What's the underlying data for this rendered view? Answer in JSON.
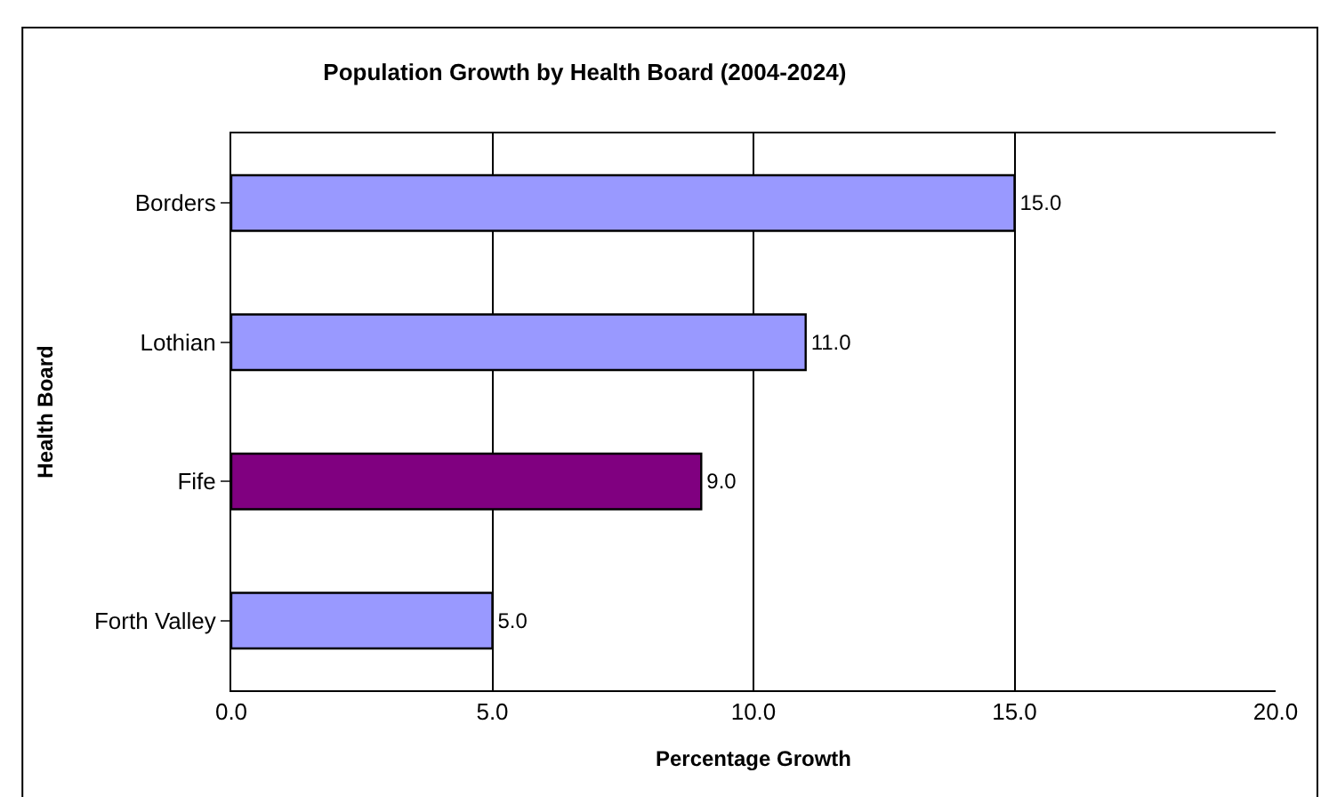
{
  "chart_data": {
    "type": "bar",
    "orientation": "horizontal",
    "title": "Population Growth by Health Board (2004-2024)",
    "xlabel": "Percentage Growth",
    "ylabel": "Health Board",
    "categories": [
      "Borders",
      "Lothian",
      "Fife",
      "Forth Valley"
    ],
    "values": [
      15.0,
      11.0,
      9.0,
      5.0
    ],
    "colors": [
      "#9999ff",
      "#9999ff",
      "#800080",
      "#9999ff"
    ],
    "value_labels": [
      "15.0",
      "11.0",
      "9.0",
      "5.0"
    ],
    "xlim": [
      0,
      20
    ],
    "xticks": [
      {
        "value": 0,
        "label": "0.0"
      },
      {
        "value": 5,
        "label": "5.0"
      },
      {
        "value": 10,
        "label": "10.0"
      },
      {
        "value": 15,
        "label": "15.0"
      },
      {
        "value": 20,
        "label": "20.0"
      }
    ],
    "grid": "x",
    "legend": false
  }
}
